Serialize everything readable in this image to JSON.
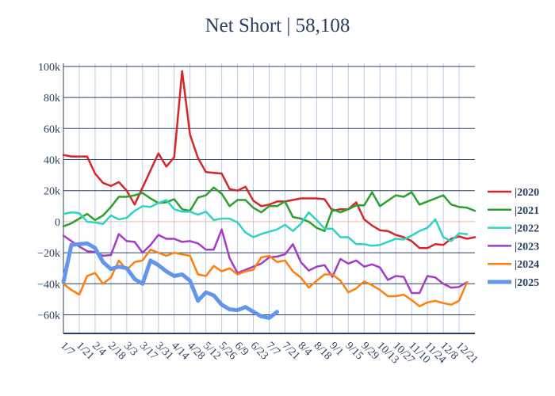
{
  "chart_data": {
    "type": "line",
    "title": "Net Short | 58,108",
    "xlabel": "",
    "ylabel": "",
    "ylim": [
      -72000,
      102000
    ],
    "y_ticks": [
      {
        "value": 100000,
        "label": "100k"
      },
      {
        "value": 80000,
        "label": "80k"
      },
      {
        "value": 60000,
        "label": "60k"
      },
      {
        "value": 40000,
        "label": "40k"
      },
      {
        "value": 20000,
        "label": "20k"
      },
      {
        "value": 0,
        "label": "0"
      },
      {
        "value": -20000,
        "label": "−20k"
      },
      {
        "value": -40000,
        "label": "−40k"
      },
      {
        "value": -60000,
        "label": "−60k"
      }
    ],
    "x_ticks": [
      "1/7",
      "1/21",
      "2/4",
      "2/18",
      "3/3",
      "3/17",
      "3/31",
      "4/14",
      "4/28",
      "5/12",
      "5/26",
      "6/9",
      "6/23",
      "7/7",
      "7/21",
      "8/4",
      "8/18",
      "9/1",
      "9/15",
      "9/29",
      "10/13",
      "10/27",
      "11/10",
      "11/24",
      "12/8",
      "12/21"
    ],
    "grid": true,
    "legend_position": "right",
    "series": [
      {
        "name": "|2020",
        "color": "#d62728",
        "width": 2.5,
        "values": [
          43000,
          42000,
          42000,
          42000,
          31000,
          25000,
          23000,
          25500,
          20000,
          11000,
          22000,
          33000,
          44000,
          35500,
          41500,
          97000,
          56000,
          41000,
          32000,
          31500,
          31000,
          21000,
          20000,
          22500,
          13500,
          10000,
          11000,
          13000,
          13000,
          14000,
          15000,
          15000,
          15000,
          14500,
          7000,
          8000,
          8000,
          12500,
          1500,
          -2500,
          -5500,
          -6000,
          -8500,
          -10000,
          -12500,
          -17000,
          -17000,
          -14500,
          -15000,
          -11000,
          -9500,
          -11000,
          -10000
        ]
      },
      {
        "name": "|2021",
        "color": "#2ca02c",
        "width": 2.5,
        "values": [
          -3000,
          -1000,
          2000,
          5000,
          1000,
          4000,
          9500,
          16000,
          16000,
          17000,
          18500,
          15000,
          12000,
          12500,
          14500,
          8000,
          7000,
          15500,
          17000,
          22000,
          18000,
          10000,
          14000,
          14000,
          9000,
          6000,
          10000,
          10000,
          13000,
          3000,
          2000,
          0,
          -4000,
          -6000,
          8000,
          6000,
          8000,
          10500,
          10500,
          19000,
          10000,
          13500,
          17000,
          16000,
          19000,
          11000,
          13000,
          15000,
          17000,
          11000,
          9500,
          9000,
          7000
        ]
      },
      {
        "name": "|2022",
        "color": "#2fd3c3",
        "width": 2.5,
        "values": [
          5000,
          6000,
          5500,
          0,
          -500,
          -1500,
          4000,
          1500,
          2500,
          7000,
          10000,
          9500,
          12000,
          14000,
          8000,
          6500,
          6500,
          4500,
          6500,
          1000,
          2000,
          2000,
          -500,
          -7000,
          -10000,
          -8000,
          -6500,
          -5000,
          -2000,
          -6000,
          -1500,
          6000,
          1000,
          -4500,
          -4500,
          -10000,
          -10000,
          -14500,
          -14500,
          -15500,
          -15000,
          -13000,
          -11000,
          -11500,
          -9000,
          -6000,
          -4000,
          1500,
          -10000,
          -12500,
          -7500,
          -8000
        ]
      },
      {
        "name": "|2023",
        "color": "#a33cc6",
        "width": 2.5,
        "values": [
          -9000,
          -12500,
          -16000,
          -19000,
          -19500,
          -22000,
          -21500,
          -8000,
          -12500,
          -13000,
          -20000,
          -15000,
          -8500,
          -11000,
          -11000,
          -13000,
          -12500,
          -14000,
          -18000,
          -18000,
          -5000,
          -23500,
          -33000,
          -31000,
          -29000,
          -27000,
          -23000,
          -22500,
          -21000,
          -14500,
          -26000,
          -31500,
          -29000,
          -28000,
          -35500,
          -24000,
          -27000,
          -25000,
          -29000,
          -27500,
          -29500,
          -37500,
          -35000,
          -35500,
          -46000,
          -46000,
          -35000,
          -36000,
          -40000,
          -42500,
          -42000,
          -39000
        ]
      },
      {
        "name": "|2024",
        "color": "#ff7f0e",
        "width": 2.5,
        "values": [
          -40000,
          -44000,
          -47000,
          -35000,
          -33000,
          -40000,
          -36000,
          -25000,
          -31000,
          -26000,
          -25000,
          -18000,
          -20000,
          -22000,
          -20000,
          -21000,
          -22000,
          -34000,
          -35000,
          -28500,
          -32000,
          -30000,
          -34000,
          -32000,
          -31000,
          -23000,
          -22000,
          -26000,
          -25000,
          -32000,
          -36000,
          -42500,
          -38000,
          -34000,
          -34000,
          -38000,
          -45500,
          -43000,
          -38500,
          -41000,
          -44000,
          -48000,
          -48000,
          -47000,
          -50500,
          -54500,
          -52000,
          -51000,
          -52500,
          -53500,
          -51000,
          -39000
        ]
      },
      {
        "name": "|2025",
        "color": "#6495ed",
        "width": 5,
        "values": [
          -39000,
          -15000,
          -14500,
          -14000,
          -17000,
          -26000,
          -30500,
          -29000,
          -30000,
          -37000,
          -40000,
          -25000,
          -28000,
          -32000,
          -35000,
          -34000,
          -38000,
          -51000,
          -45500,
          -47500,
          -53500,
          -56500,
          -57000,
          -55000,
          -58000,
          -61000,
          -62000,
          -58108
        ]
      }
    ]
  }
}
